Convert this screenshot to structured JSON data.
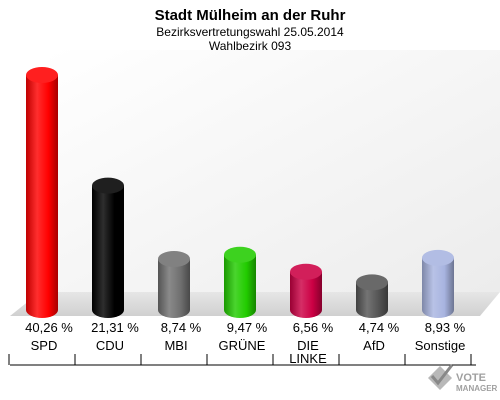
{
  "chart_data": {
    "type": "bar",
    "title": "Stadt Mülheim an der Ruhr",
    "subtitle_line1": "Bezirksvertretungswahl 25.05.2014",
    "subtitle_line2": "Wahlbezirk 093",
    "categories": [
      "SPD",
      "CDU",
      "MBI",
      "GRÜNE",
      "DIE LINKE",
      "AfD",
      "Sonstige"
    ],
    "category_lines": [
      [
        "SPD"
      ],
      [
        "CDU"
      ],
      [
        "MBI"
      ],
      [
        "GRÜNE"
      ],
      [
        "DIE",
        "LINKE"
      ],
      [
        "AfD"
      ],
      [
        "Sonstige"
      ]
    ],
    "values": [
      40.26,
      21.31,
      8.74,
      9.47,
      6.56,
      4.74,
      8.93
    ],
    "value_labels": [
      "40,26 %",
      "21,31 %",
      "8,74 %",
      "9,47 %",
      "6,56 %",
      "4,74 %",
      "8,93 %"
    ],
    "colors": [
      "#ff0000",
      "#000000",
      "#707070",
      "#22cc00",
      "#cc0044",
      "#555555",
      "#a8b4e0"
    ],
    "ylim": [
      0,
      40.26
    ],
    "grid": false,
    "legend": "none"
  },
  "watermark": {
    "line1": "VOTE",
    "line2": "MANAGER"
  }
}
